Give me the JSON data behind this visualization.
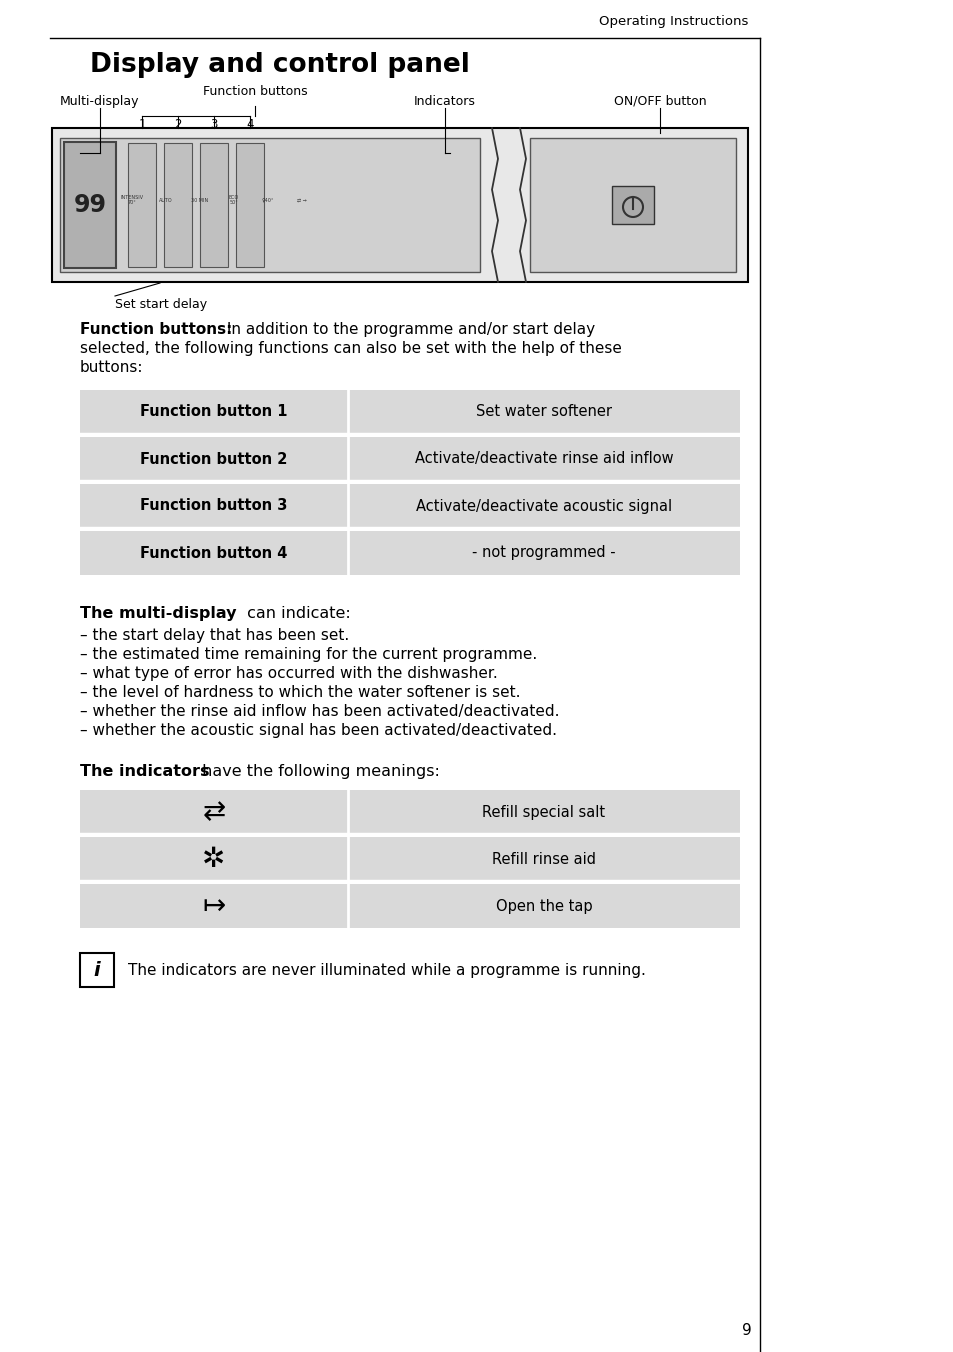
{
  "page_title": "Display and control panel",
  "header_text": "Operating Instructions",
  "page_number": "9",
  "bg_color": "#ffffff",
  "label_top_left": "Multi-display",
  "label_func_buttons": "Function buttons",
  "label_indicators": "Indicators",
  "label_on_off": "ON/OFF button",
  "label_set_start": "Set start delay",
  "func_intro_bold": "Function buttons:",
  "func_intro_normal": " In addition to the programme and/or start delay\nselected, the following functions can also be set with the help of these\nbuttons:",
  "func_table_headers": [
    "Function button 1",
    "Function button 2",
    "Function button 3",
    "Function button 4"
  ],
  "func_table_values": [
    "Set water softener",
    "Activate/deactivate rinse aid inflow",
    "Activate/deactivate acoustic signal",
    "- not programmed -"
  ],
  "md_bold": "The multi-display",
  "md_normal": " can indicate:",
  "md_bullets": [
    "– the start delay that has been set.",
    "– the estimated time remaining for the current programme.",
    "– what type of error has occurred with the dishwasher.",
    "– the level of hardness to which the water softener is set.",
    "– whether the rinse aid inflow has been activated/deactivated.",
    "– whether the acoustic signal has been activated/deactivated."
  ],
  "ind_bold": "The indicators",
  "ind_normal": " have the following meanings:",
  "ind_table_values": [
    "Refill special salt",
    "Refill rinse aid",
    "Open the tap"
  ],
  "info_note": "The indicators are never illuminated while a programme is running.",
  "table_bg": "#d9d9d9",
  "table_sep": "#ffffff",
  "panel_bg": "#e8e8e8",
  "panel_inner_bg": "#d0d0d0",
  "seg_bg": "#b0b0b0"
}
